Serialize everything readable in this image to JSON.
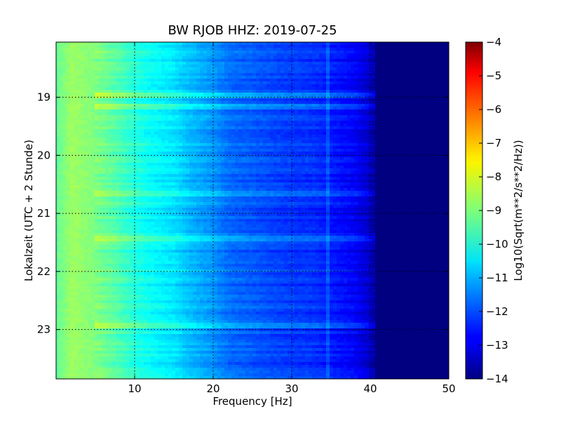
{
  "chart_data": {
    "type": "heatmap",
    "title": "BW RJOB HHZ: 2019-07-25",
    "xlabel": "Frequency [Hz]",
    "ylabel": "Lokalzeit (UTC + 2 Stunde)",
    "xlim": [
      0,
      50
    ],
    "ylim": [
      18.05,
      23.85
    ],
    "y_inverted": true,
    "x_ticks": [
      10,
      20,
      30,
      40,
      50
    ],
    "y_ticks": [
      19,
      20,
      21,
      22,
      23
    ],
    "grid": true,
    "colormap": "jet",
    "colorbar": {
      "label": "Log10(Sqrt(m**2/s**2/Hz))",
      "range": [
        -14,
        -4
      ],
      "ticks": [
        -4,
        -5,
        -6,
        -7,
        -8,
        -9,
        -10,
        -11,
        -12,
        -13,
        -14
      ]
    },
    "spectral_level_profile": {
      "frequency_hz": [
        0,
        2,
        5,
        8,
        10,
        12,
        15,
        17,
        20,
        22,
        25,
        28,
        30,
        33,
        35,
        38,
        40,
        41,
        50
      ],
      "log10_amplitude": [
        -9.3,
        -8.7,
        -9.0,
        -9.5,
        -9.9,
        -10.2,
        -10.5,
        -10.9,
        -11.3,
        -11.7,
        -11.9,
        -12.1,
        -12.2,
        -12.3,
        -12.5,
        -12.8,
        -13.3,
        -14.0,
        -14.0
      ]
    },
    "persistent_line_hz": 34.5,
    "strong_bands_hour": [
      18.95,
      19.15,
      20.65,
      21.4,
      22.9
    ]
  }
}
